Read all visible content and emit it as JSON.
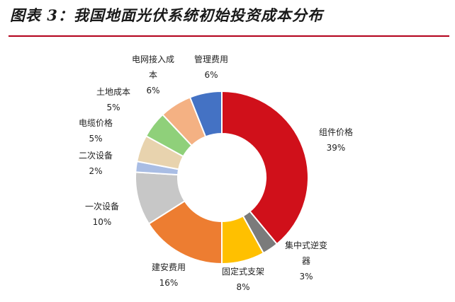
{
  "title": "图表 3：我国地面光伏系统初始投资成本分布",
  "chart_data": {
    "type": "pie",
    "donut": true,
    "categories": [
      "组件价格",
      "集中式逆变器",
      "固定式支架",
      "建安费用",
      "一次设备",
      "二次设备",
      "电缆价格",
      "土地成本",
      "电网接入成本",
      "管理费用"
    ],
    "values": [
      39,
      3,
      8,
      16,
      10,
      2,
      5,
      5,
      6,
      6
    ],
    "value_labels": [
      "39%",
      "3%",
      "8%",
      "16%",
      "10%",
      "2%",
      "5%",
      "5%",
      "6%",
      "6%"
    ],
    "label_lines": [
      [
        "组件价格"
      ],
      [
        "集中式逆变",
        "器"
      ],
      [
        "固定式支架"
      ],
      [
        "建安费用"
      ],
      [
        "一次设备"
      ],
      [
        "二次设备"
      ],
      [
        "电缆价格"
      ],
      [
        "土地成本"
      ],
      [
        "电网接入成",
        "本"
      ],
      [
        "管理费用"
      ]
    ],
    "colors": [
      "#d0101a",
      "#7b7b7b",
      "#ffc000",
      "#ed7d31",
      "#c7c7c7",
      "#a9bde4",
      "#e8d3ae",
      "#8fd07a",
      "#f4b183",
      "#4472c4"
    ],
    "legend": "none",
    "start": "top",
    "direction": "clockwise"
  }
}
